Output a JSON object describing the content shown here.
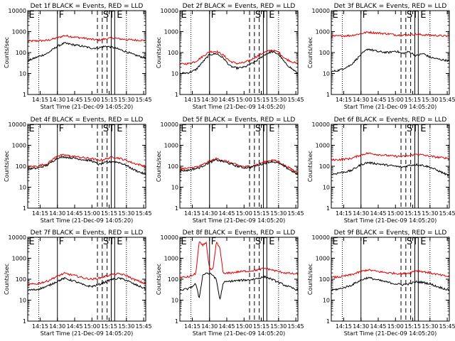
{
  "chart_data": {
    "type": "line",
    "xlabel": "Start Time (21-Dec-09 14:05:20)",
    "ylabel": "Counts/sec",
    "yscale": "log",
    "ylim": [
      1,
      10000
    ],
    "xlim": [
      14.07,
      15.78
    ],
    "y_ticks": [
      1,
      10,
      100,
      1000,
      10000
    ],
    "y_tick_labels": [
      "1",
      "10",
      "100",
      "1000",
      "10000"
    ],
    "x_ticks": [
      14.25,
      14.5,
      14.75,
      15.0,
      15.25,
      15.5,
      15.75
    ],
    "x_tick_labels": [
      "14:15",
      "14:30",
      "14:45",
      "15:00",
      "15:15",
      "15:30",
      "15:45"
    ],
    "colors": {
      "events": "#000000",
      "lld": "#e00000"
    },
    "markers": {
      "dotted": [
        14.23,
        15.5
      ],
      "solid": [
        14.5,
        15.28,
        15.33
      ],
      "dashed": [
        15.08,
        15.15,
        15.22
      ]
    },
    "series_labels": [
      "BLACK = Events",
      "RED = LLD"
    ],
    "panels": [
      {
        "title": "Det 1f BLACK = Events, RED = LLD",
        "letters": [
          "E",
          "F",
          "S",
          "T",
          "E"
        ],
        "events": {
          "x": [
            14.07,
            14.2,
            14.35,
            14.5,
            14.6,
            14.75,
            14.9,
            15.0,
            15.1,
            15.2,
            15.3,
            15.4,
            15.5,
            15.6,
            15.78
          ],
          "values": [
            40,
            60,
            90,
            200,
            280,
            230,
            190,
            160,
            170,
            200,
            180,
            140,
            110,
            80,
            55
          ]
        },
        "lld": {
          "x": [
            14.07,
            14.2,
            14.35,
            14.5,
            14.6,
            14.75,
            14.9,
            15.0,
            15.1,
            15.2,
            15.3,
            15.4,
            15.5,
            15.6,
            15.78
          ],
          "values": [
            350,
            360,
            380,
            500,
            650,
            550,
            480,
            420,
            400,
            450,
            500,
            450,
            420,
            400,
            380
          ]
        }
      },
      {
        "title": "Det 2f BLACK = Events, RED = LLD",
        "letters": [
          "E",
          "F",
          "S",
          "T",
          "E"
        ],
        "events": {
          "x": [
            14.07,
            14.2,
            14.3,
            14.4,
            14.5,
            14.6,
            14.7,
            14.8,
            14.9,
            15.0,
            15.1,
            15.2,
            15.3,
            15.4,
            15.5,
            15.6,
            15.78
          ],
          "values": [
            10,
            11,
            15,
            35,
            80,
            90,
            55,
            22,
            18,
            20,
            28,
            45,
            80,
            110,
            85,
            30,
            10
          ]
        },
        "lld": {
          "x": [
            14.07,
            14.2,
            14.3,
            14.4,
            14.5,
            14.6,
            14.7,
            14.8,
            14.9,
            15.0,
            15.1,
            15.2,
            15.3,
            15.4,
            15.5,
            15.6,
            15.78
          ],
          "values": [
            28,
            30,
            38,
            65,
            110,
            115,
            75,
            38,
            30,
            33,
            45,
            70,
            105,
            130,
            105,
            50,
            28
          ]
        }
      },
      {
        "title": "Det 3f BLACK = Events, RED = LLD",
        "letters": [
          "E",
          "F",
          "S",
          "T",
          "E"
        ],
        "events": {
          "x": [
            14.07,
            14.2,
            14.35,
            14.5,
            14.6,
            14.75,
            14.9,
            15.0,
            15.1,
            15.2,
            15.3,
            15.4,
            15.5,
            15.6,
            15.78
          ],
          "values": [
            12,
            15,
            25,
            80,
            150,
            110,
            100,
            120,
            90,
            110,
            70,
            90,
            60,
            50,
            40
          ]
        },
        "lld": {
          "x": [
            14.07,
            14.2,
            14.35,
            14.5,
            14.6,
            14.75,
            14.9,
            15.0,
            15.1,
            15.2,
            15.3,
            15.4,
            15.5,
            15.6,
            15.78
          ],
          "values": [
            600,
            620,
            650,
            800,
            950,
            850,
            780,
            700,
            680,
            720,
            750,
            700,
            680,
            650,
            600
          ]
        }
      },
      {
        "title": "Det 4f BLACK = Events, RED = LLD",
        "letters": [
          "E",
          "F",
          "S",
          "T",
          "E"
        ],
        "events": {
          "x": [
            14.07,
            14.2,
            14.35,
            14.5,
            14.6,
            14.75,
            14.9,
            15.0,
            15.1,
            15.2,
            15.3,
            15.4,
            15.5,
            15.6,
            15.78
          ],
          "values": [
            75,
            80,
            110,
            250,
            280,
            240,
            200,
            180,
            120,
            150,
            170,
            150,
            110,
            70,
            40
          ]
        },
        "lld": {
          "x": [
            14.07,
            14.2,
            14.35,
            14.5,
            14.6,
            14.75,
            14.9,
            15.0,
            15.1,
            15.2,
            15.3,
            15.4,
            15.5,
            15.6,
            15.78
          ],
          "values": [
            95,
            100,
            130,
            320,
            340,
            290,
            250,
            230,
            190,
            220,
            280,
            240,
            190,
            140,
            100
          ]
        }
      },
      {
        "title": "Det 5f BLACK = Events, RED = LLD",
        "letters": [
          "E",
          "F",
          "S",
          "T",
          "E"
        ],
        "events": {
          "x": [
            14.07,
            14.2,
            14.35,
            14.5,
            14.6,
            14.75,
            14.9,
            15.0,
            15.1,
            15.2,
            15.3,
            15.4,
            15.5,
            15.6,
            15.78
          ],
          "values": [
            60,
            65,
            85,
            150,
            200,
            150,
            100,
            85,
            90,
            110,
            140,
            170,
            140,
            90,
            40
          ]
        },
        "lld": {
          "x": [
            14.07,
            14.2,
            14.35,
            14.5,
            14.6,
            14.75,
            14.9,
            15.0,
            15.1,
            15.2,
            15.3,
            15.4,
            15.5,
            15.6,
            15.78
          ],
          "values": [
            75,
            80,
            100,
            170,
            230,
            170,
            115,
            95,
            100,
            125,
            160,
            200,
            165,
            105,
            50
          ]
        }
      },
      {
        "title": "Det 6f BLACK = Events, RED = LLD",
        "letters": [
          "E",
          "F",
          "S",
          "T",
          "E"
        ],
        "events": {
          "x": [
            14.07,
            14.2,
            14.35,
            14.5,
            14.6,
            14.75,
            14.9,
            15.0,
            15.1,
            15.2,
            15.3,
            15.4,
            15.5,
            15.6,
            15.78
          ],
          "values": [
            40,
            50,
            60,
            120,
            150,
            130,
            110,
            100,
            90,
            110,
            120,
            110,
            90,
            65,
            35
          ]
        },
        "lld": {
          "x": [
            14.07,
            14.2,
            14.35,
            14.5,
            14.6,
            14.75,
            14.9,
            15.0,
            15.1,
            15.2,
            15.3,
            15.4,
            15.5,
            15.6,
            15.78
          ],
          "values": [
            200,
            210,
            230,
            350,
            420,
            360,
            320,
            300,
            290,
            320,
            380,
            340,
            300,
            270,
            240
          ]
        }
      },
      {
        "title": "Det 7f BLACK = Events, RED = LLD",
        "letters": [
          "E",
          "F",
          "S",
          "T",
          "E"
        ],
        "events": {
          "x": [
            14.07,
            14.2,
            14.35,
            14.5,
            14.6,
            14.75,
            14.9,
            15.0,
            15.1,
            15.2,
            15.3,
            15.4,
            15.5,
            15.6,
            15.78
          ],
          "values": [
            30,
            32,
            45,
            80,
            110,
            80,
            50,
            45,
            55,
            75,
            100,
            110,
            90,
            60,
            35
          ]
        },
        "lld": {
          "x": [
            14.07,
            14.2,
            14.35,
            14.5,
            14.6,
            14.75,
            14.9,
            15.0,
            15.1,
            15.2,
            15.3,
            15.4,
            15.5,
            15.6,
            15.78
          ],
          "values": [
            55,
            60,
            80,
            140,
            190,
            150,
            110,
            100,
            110,
            140,
            170,
            180,
            150,
            100,
            60
          ]
        }
      },
      {
        "title": "Det 8f BLACK = Events, RED = LLD",
        "letters": [
          "E",
          "F",
          "S",
          "T",
          "E"
        ],
        "events": {
          "x": [
            14.07,
            14.2,
            14.3,
            14.35,
            14.4,
            14.45,
            14.5,
            14.55,
            14.6,
            14.65,
            14.7,
            14.8,
            14.9,
            15.0,
            15.1,
            15.2,
            15.3,
            15.4,
            15.5,
            15.6,
            15.78
          ],
          "values": [
            30,
            35,
            60,
            12,
            150,
            200,
            180,
            160,
            90,
            10,
            70,
            80,
            85,
            90,
            95,
            110,
            130,
            100,
            70,
            50,
            30
          ]
        },
        "lld": {
          "x": [
            14.07,
            14.2,
            14.3,
            14.35,
            14.4,
            14.45,
            14.5,
            14.55,
            14.6,
            14.65,
            14.7,
            14.8,
            14.9,
            15.0,
            15.1,
            15.2,
            15.3,
            15.4,
            15.5,
            15.6,
            15.78
          ],
          "values": [
            120,
            130,
            180,
            6000,
            4000,
            6000,
            300,
            280,
            6000,
            3000,
            180,
            200,
            220,
            240,
            250,
            280,
            330,
            280,
            230,
            200,
            170
          ]
        }
      },
      {
        "title": "Det 9f BLACK = Events, RED = LLD",
        "letters": [
          "E",
          "F",
          "S",
          "T",
          "E"
        ],
        "events": {
          "x": [
            14.07,
            14.2,
            14.35,
            14.5,
            14.6,
            14.75,
            14.9,
            15.0,
            15.1,
            15.2,
            15.3,
            15.4,
            15.5,
            15.6,
            15.78
          ],
          "values": [
            30,
            35,
            50,
            90,
            120,
            90,
            70,
            60,
            55,
            60,
            75,
            70,
            60,
            45,
            30
          ]
        },
        "lld": {
          "x": [
            14.07,
            14.2,
            14.35,
            14.5,
            14.6,
            14.75,
            14.9,
            15.0,
            15.1,
            15.2,
            15.3,
            15.4,
            15.5,
            15.6,
            15.78
          ],
          "values": [
            120,
            130,
            160,
            230,
            280,
            230,
            200,
            190,
            180,
            200,
            260,
            230,
            200,
            170,
            130
          ]
        }
      }
    ]
  }
}
